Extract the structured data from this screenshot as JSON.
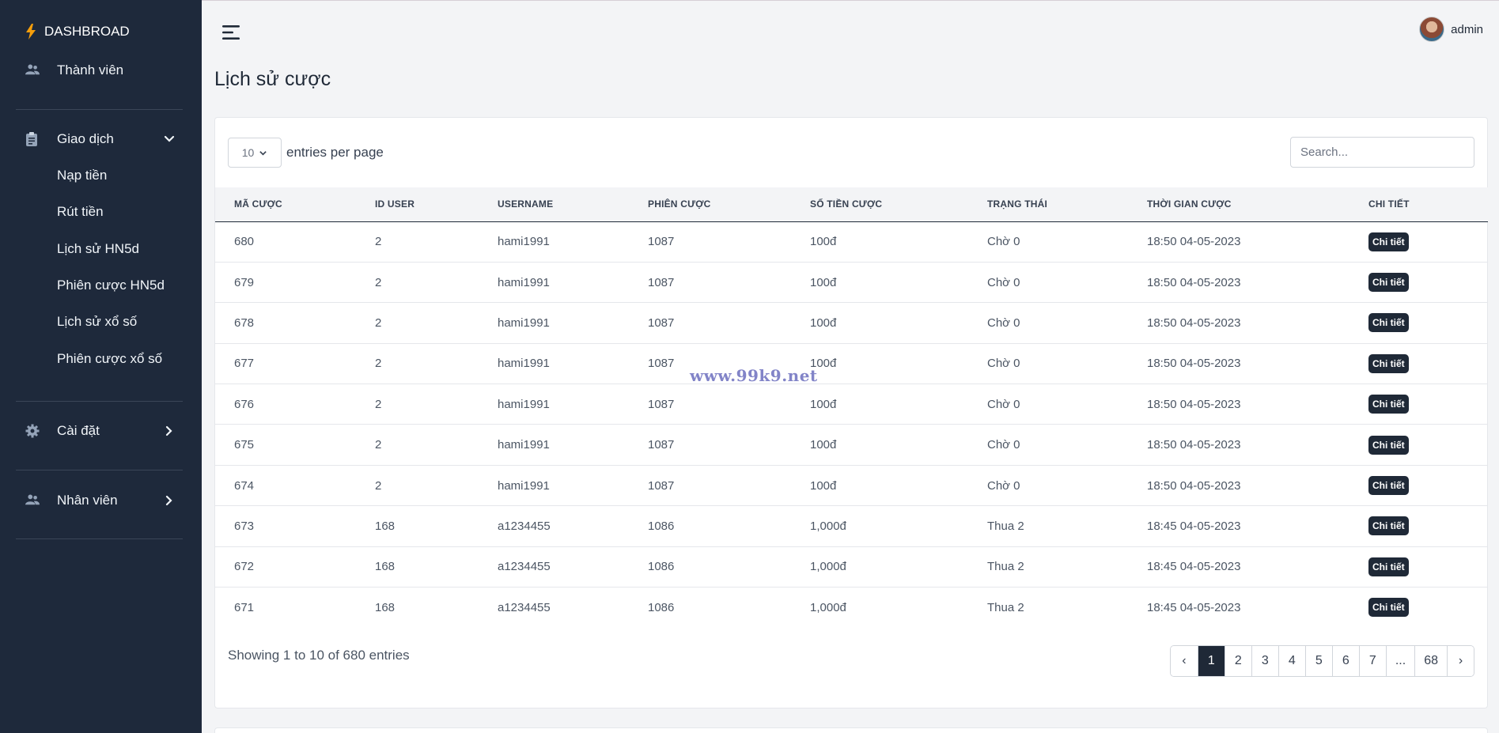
{
  "sidebar": {
    "brand": "DASHBROAD",
    "members": "Thành viên",
    "transactions": {
      "label": "Giao dịch",
      "items": [
        "Nạp tiền",
        "Rút tiền",
        "Lịch sử HN5d",
        "Phiên cược HN5d",
        "Lịch sử xổ số",
        "Phiên cược xổ số"
      ]
    },
    "settings": "Cài đặt",
    "staff": "Nhân viên"
  },
  "topbar": {
    "username": "admin"
  },
  "page": {
    "title": "Lịch sử cược"
  },
  "table_controls": {
    "per_page_value": "10",
    "per_page_label": "entries per page",
    "search_placeholder": "Search..."
  },
  "table": {
    "headers": [
      "MÃ CƯỢC",
      "ID USER",
      "USERNAME",
      "PHIÊN CƯỢC",
      "SỐ TIỀN CƯỢC",
      "TRẠNG THÁI",
      "THỜI GIAN CƯỢC",
      "CHI TIẾT"
    ],
    "detail_label": "Chi tiết",
    "rows": [
      [
        "680",
        "2",
        "hami1991",
        "1087",
        "100đ",
        "Chờ 0",
        "18:50 04-05-2023"
      ],
      [
        "679",
        "2",
        "hami1991",
        "1087",
        "100đ",
        "Chờ 0",
        "18:50 04-05-2023"
      ],
      [
        "678",
        "2",
        "hami1991",
        "1087",
        "100đ",
        "Chờ 0",
        "18:50 04-05-2023"
      ],
      [
        "677",
        "2",
        "hami1991",
        "1087",
        "100đ",
        "Chờ 0",
        "18:50 04-05-2023"
      ],
      [
        "676",
        "2",
        "hami1991",
        "1087",
        "100đ",
        "Chờ 0",
        "18:50 04-05-2023"
      ],
      [
        "675",
        "2",
        "hami1991",
        "1087",
        "100đ",
        "Chờ 0",
        "18:50 04-05-2023"
      ],
      [
        "674",
        "2",
        "hami1991",
        "1087",
        "100đ",
        "Chờ 0",
        "18:50 04-05-2023"
      ],
      [
        "673",
        "168",
        "a1234455",
        "1086",
        "1,000đ",
        "Thua 2",
        "18:45 04-05-2023"
      ],
      [
        "672",
        "168",
        "a1234455",
        "1086",
        "1,000đ",
        "Thua 2",
        "18:45 04-05-2023"
      ],
      [
        "671",
        "168",
        "a1234455",
        "1086",
        "1,000đ",
        "Thua 2",
        "18:45 04-05-2023"
      ]
    ]
  },
  "footer": {
    "showing": "Showing 1 to 10 of 680 entries",
    "pages": [
      "‹",
      "1",
      "2",
      "3",
      "4",
      "5",
      "6",
      "7",
      "...",
      "68",
      "›"
    ],
    "active_page": "1"
  },
  "watermark": "www.99k9.net",
  "colors": {
    "sidebar_bg": "#1e293b",
    "accent_bolt": "#f59e0b",
    "primary_dark": "#1f2937"
  }
}
